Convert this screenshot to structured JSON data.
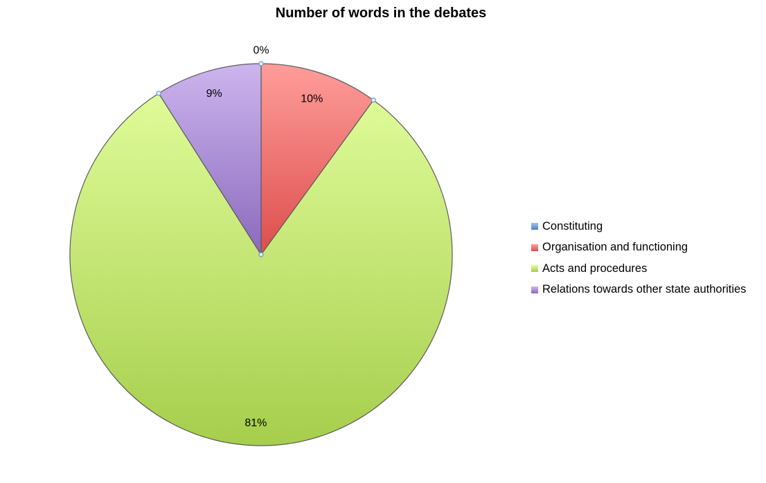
{
  "chart_data": {
    "type": "pie",
    "title": "Number of words in the debates",
    "categories": [
      "Constituting",
      "Organisation and functioning",
      "Acts and procedures",
      "Relations towards other state authorities"
    ],
    "values": [
      0,
      10,
      81,
      9
    ],
    "data_labels": [
      "0%",
      "10%",
      "81%",
      "9%"
    ],
    "unit": "percent",
    "start_angle": "12 o'clock, clockwise",
    "legend_position": "right",
    "colors": {
      "Constituting": [
        "#9cc5f0",
        "#4f81bd"
      ],
      "Organisation and functioning": [
        "#ff9d9a",
        "#dc4e4c"
      ],
      "Acts and procedures": [
        "#e4ffa0",
        "#a6ce4c"
      ],
      "Relations towards other state authorities": [
        "#cdb5ee",
        "#8a6abd"
      ]
    },
    "edge_color": "#5a5a5a",
    "marker_color": "#6a9fca"
  }
}
